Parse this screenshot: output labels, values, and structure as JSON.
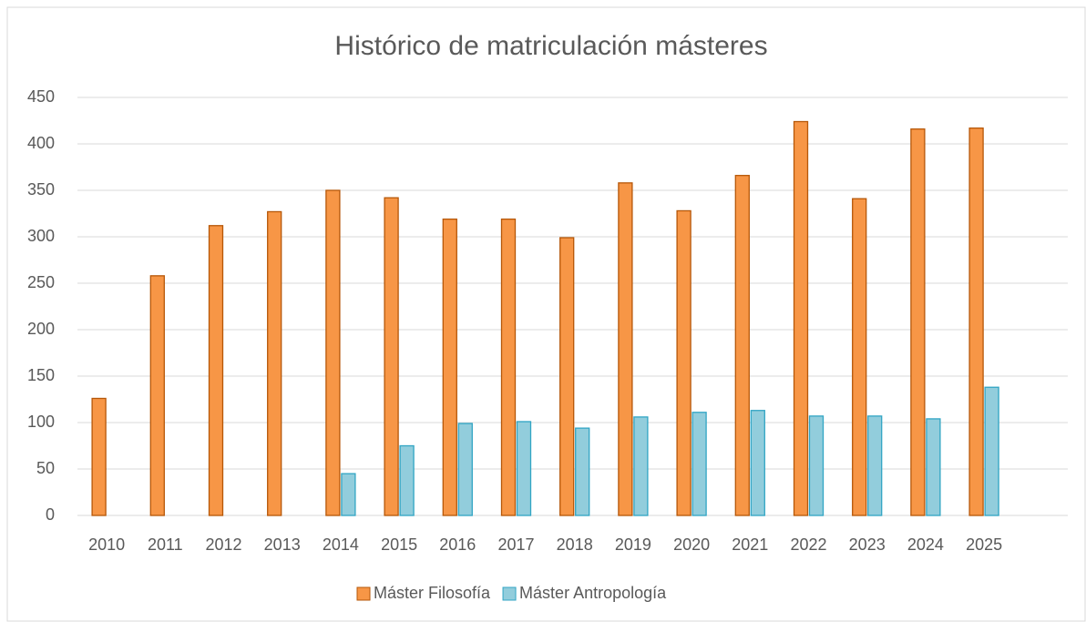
{
  "chart_data": {
    "type": "bar",
    "title": "Histórico de matriculación másteres",
    "categories": [
      "2010",
      "2011",
      "2012",
      "2013",
      "2014",
      "2015",
      "2016",
      "2017",
      "2018",
      "2019",
      "2020",
      "2021",
      "2022",
      "2023",
      "2024",
      "2025"
    ],
    "series": [
      {
        "name": "Máster Filosofía",
        "color": "#f79646",
        "values": [
          126,
          258,
          312,
          327,
          350,
          342,
          319,
          319,
          299,
          358,
          328,
          366,
          424,
          341,
          416,
          417
        ]
      },
      {
        "name": "Máster Antropología",
        "color": "#92cddc",
        "values": [
          null,
          null,
          null,
          null,
          45,
          75,
          99,
          101,
          94,
          106,
          111,
          113,
          107,
          107,
          104,
          138
        ]
      }
    ],
    "ylim": [
      0,
      450
    ],
    "yticks": [
      0,
      50,
      100,
      150,
      200,
      250,
      300,
      350,
      400,
      450
    ],
    "grid": true,
    "legend": "bottom"
  }
}
